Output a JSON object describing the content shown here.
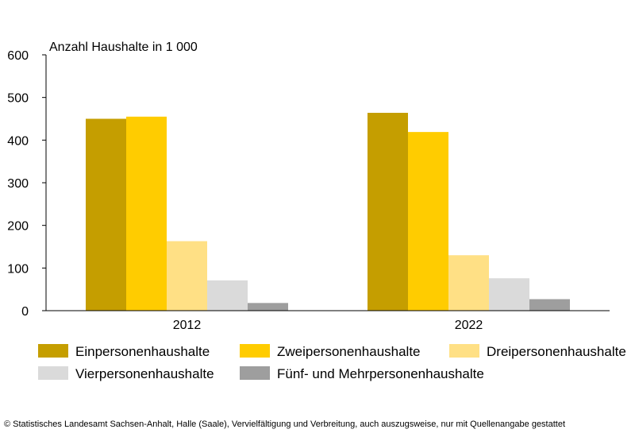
{
  "chart_data": {
    "type": "bar",
    "title": "",
    "ylabel": "Anzahl Haushalte in 1 000",
    "xlabel": "",
    "ylim": [
      0,
      600
    ],
    "yticks": [
      0,
      100,
      200,
      300,
      400,
      500,
      600
    ],
    "grid": false,
    "legend_position": "bottom",
    "categories": [
      "2012",
      "2022"
    ],
    "series": [
      {
        "name": "Einpersonenhaushalte",
        "color": "#C59E00",
        "values": [
          450,
          464
        ]
      },
      {
        "name": "Zweipersonenhaushalte",
        "color": "#FFCC00",
        "values": [
          455,
          419
        ]
      },
      {
        "name": "Dreipersonenhaushalte",
        "color": "#FFE085",
        "values": [
          163,
          130
        ]
      },
      {
        "name": "Vierpersonenhaushalte",
        "color": "#DADADA",
        "values": [
          71,
          76
        ]
      },
      {
        "name": "Fünf- und Mehrpersonenhaushalte",
        "color": "#9E9E9E",
        "values": [
          18,
          27
        ]
      }
    ]
  },
  "footer": "© Statistisches Landesamt Sachsen-Anhalt, Halle (Saale), Vervielfältigung und Verbreitung, auch auszugsweise, nur mit Quellenangabe gestattet"
}
